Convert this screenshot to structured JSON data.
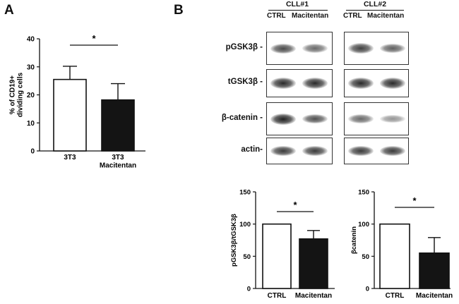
{
  "panel_a": {
    "letter": "A",
    "chart_data": {
      "type": "bar",
      "categories": [
        "3T3",
        "3T3\nMacitentan"
      ],
      "values": [
        25.5,
        18.2
      ],
      "errors": [
        4.7,
        5.8
      ],
      "fill_colors": [
        "#ffffff",
        "#141414"
      ],
      "ylabel": "% of CD19+\ndividing cells",
      "ylim": [
        0,
        40
      ],
      "yticks": [
        0,
        10,
        20,
        30,
        40
      ],
      "significance": "*",
      "grid": false
    }
  },
  "panel_b": {
    "letter": "B",
    "western": {
      "groups": [
        {
          "name": "CLL#1",
          "lanes": [
            "CTRL",
            "Macitentan"
          ]
        },
        {
          "name": "CLL#2",
          "lanes": [
            "CTRL",
            "Macitentan"
          ]
        }
      ],
      "rows": [
        {
          "label": "pGSK3β -",
          "intensities": [
            [
              0.75,
              0.55
            ],
            [
              0.8,
              0.62
            ]
          ]
        },
        {
          "label": "tGSK3β -",
          "intensities": [
            [
              0.95,
              0.95
            ],
            [
              0.95,
              0.95
            ]
          ]
        },
        {
          "label": "β-catenin -",
          "intensities": [
            [
              1.0,
              0.72
            ],
            [
              0.55,
              0.28
            ]
          ]
        },
        {
          "label": "actin-",
          "intensities": [
            [
              0.85,
              0.85
            ],
            [
              0.85,
              0.85
            ]
          ]
        }
      ]
    },
    "charts": [
      {
        "type": "bar",
        "categories": [
          "CTRL",
          "Macitentan"
        ],
        "values": [
          100,
          77
        ],
        "errors": [
          0,
          13
        ],
        "fill_colors": [
          "#ffffff",
          "#141414"
        ],
        "ylabel": "pGSK3β/tGSK3β",
        "ylim": [
          0,
          150
        ],
        "yticks": [
          0,
          50,
          100,
          150
        ],
        "significance": "*"
      },
      {
        "type": "bar",
        "categories": [
          "CTRL",
          "Macitentan"
        ],
        "values": [
          100,
          55
        ],
        "errors": [
          0,
          24
        ],
        "fill_colors": [
          "#ffffff",
          "#141414"
        ],
        "ylabel": "βcatenin",
        "ylim": [
          0,
          150
        ],
        "yticks": [
          0,
          50,
          100,
          150
        ],
        "significance": "*"
      }
    ]
  }
}
